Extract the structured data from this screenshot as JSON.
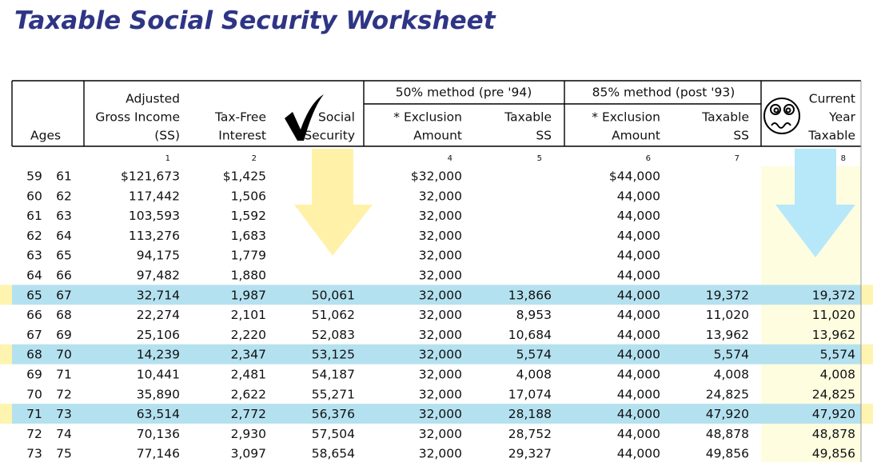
{
  "title": "Taxable Social Security Worksheet",
  "table": {
    "groups": [
      {
        "label": "50% method (pre '94)"
      },
      {
        "label": "85% method (post '93)"
      }
    ],
    "headers": [
      {
        "lines": [
          "Ages"
        ]
      },
      {
        "lines": [
          "Adjusted",
          "Gross Income",
          "(SS)"
        ]
      },
      {
        "lines": [
          "Tax-Free",
          "Interest"
        ]
      },
      {
        "lines": [
          "Social",
          "Security"
        ]
      },
      {
        "lines": [
          "* Exclusion",
          "Amount"
        ]
      },
      {
        "lines": [
          "Taxable",
          "SS"
        ]
      },
      {
        "lines": [
          "* Exclusion",
          "Amount"
        ]
      },
      {
        "lines": [
          "Taxable",
          "SS"
        ]
      },
      {
        "lines": [
          "Current",
          "Year",
          "Taxable"
        ]
      }
    ],
    "column_numbers": [
      null,
      1,
      2,
      null,
      4,
      5,
      6,
      7,
      8
    ],
    "rows": [
      {
        "cells": [
          "59",
          "61",
          "$121,673",
          "$1,425",
          null,
          "$32,000",
          null,
          "$44,000",
          null,
          null
        ]
      },
      {
        "cells": [
          "60",
          "62",
          "117,442",
          "1,506",
          null,
          "32,000",
          null,
          "44,000",
          null,
          null
        ]
      },
      {
        "cells": [
          "61",
          "63",
          "103,593",
          "1,592",
          null,
          "32,000",
          null,
          "44,000",
          null,
          null
        ]
      },
      {
        "cells": [
          "62",
          "64",
          "113,276",
          "1,683",
          null,
          "32,000",
          null,
          "44,000",
          null,
          null
        ]
      },
      {
        "cells": [
          "63",
          "65",
          "94,175",
          "1,779",
          null,
          "32,000",
          null,
          "44,000",
          null,
          null
        ]
      },
      {
        "cells": [
          "64",
          "66",
          "97,482",
          "1,880",
          null,
          "32,000",
          null,
          "44,000",
          null,
          null
        ]
      },
      {
        "cells": [
          "65",
          "67",
          "32,714",
          "1,987",
          "50,061",
          "32,000",
          "13,866",
          "44,000",
          "19,372",
          "19,372"
        ],
        "highlighted": true
      },
      {
        "cells": [
          "66",
          "68",
          "22,274",
          "2,101",
          "51,062",
          "32,000",
          "8,953",
          "44,000",
          "11,020",
          "11,020"
        ]
      },
      {
        "cells": [
          "67",
          "69",
          "25,106",
          "2,220",
          "52,083",
          "32,000",
          "10,684",
          "44,000",
          "13,962",
          "13,962"
        ]
      },
      {
        "cells": [
          "68",
          "70",
          "14,239",
          "2,347",
          "53,125",
          "32,000",
          "5,574",
          "44,000",
          "5,574",
          "5,574"
        ],
        "highlighted": true
      },
      {
        "cells": [
          "69",
          "71",
          "10,441",
          "2,481",
          "54,187",
          "32,000",
          "4,008",
          "44,000",
          "4,008",
          "4,008"
        ]
      },
      {
        "cells": [
          "70",
          "72",
          "35,890",
          "2,622",
          "55,271",
          "32,000",
          "17,074",
          "44,000",
          "24,825",
          "24,825"
        ]
      },
      {
        "cells": [
          "71",
          "73",
          "63,514",
          "2,772",
          "56,376",
          "32,000",
          "28,188",
          "44,000",
          "47,920",
          "47,920"
        ],
        "highlighted": true
      },
      {
        "cells": [
          "72",
          "74",
          "70,136",
          "2,930",
          "57,504",
          "32,000",
          "28,752",
          "44,000",
          "48,878",
          "48,878"
        ]
      },
      {
        "cells": [
          "73",
          "75",
          "77,146",
          "3,097",
          "58,654",
          "32,000",
          "29,327",
          "44,000",
          "49,856",
          "49,856"
        ]
      }
    ]
  }
}
